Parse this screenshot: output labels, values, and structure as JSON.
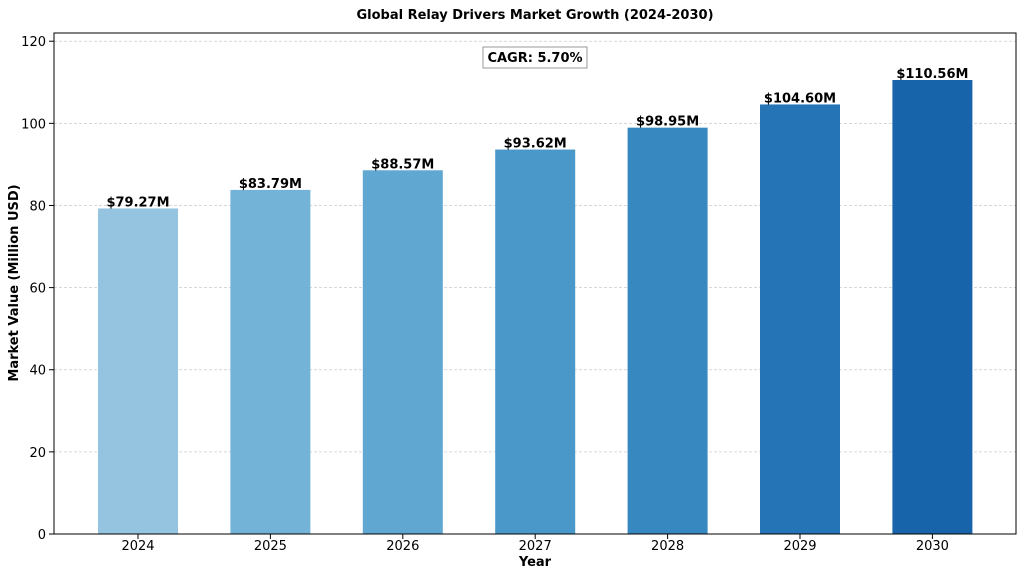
{
  "chart_data": {
    "type": "bar",
    "title": "Global Relay Drivers Market Growth (2024-2030)",
    "xlabel": "Year",
    "ylabel": "Market Value (Million USD)",
    "categories": [
      "2024",
      "2025",
      "2026",
      "2027",
      "2028",
      "2029",
      "2030"
    ],
    "values": [
      79.27,
      83.79,
      88.57,
      93.62,
      98.95,
      104.6,
      110.56
    ],
    "data_labels": [
      "$79.27M",
      "$83.79M",
      "$88.57M",
      "$93.62M",
      "$98.95M",
      "$104.60M",
      "$110.56M"
    ],
    "bar_colors": [
      "#94c4df",
      "#74b3d8",
      "#60a7d2",
      "#4a98c9",
      "#3787c0",
      "#2474b6",
      "#1764ab"
    ],
    "ylim": [
      0,
      122
    ],
    "yticks": [
      0,
      20,
      40,
      60,
      80,
      100,
      120
    ],
    "grid": true,
    "annotation": "CAGR: 5.70%"
  }
}
